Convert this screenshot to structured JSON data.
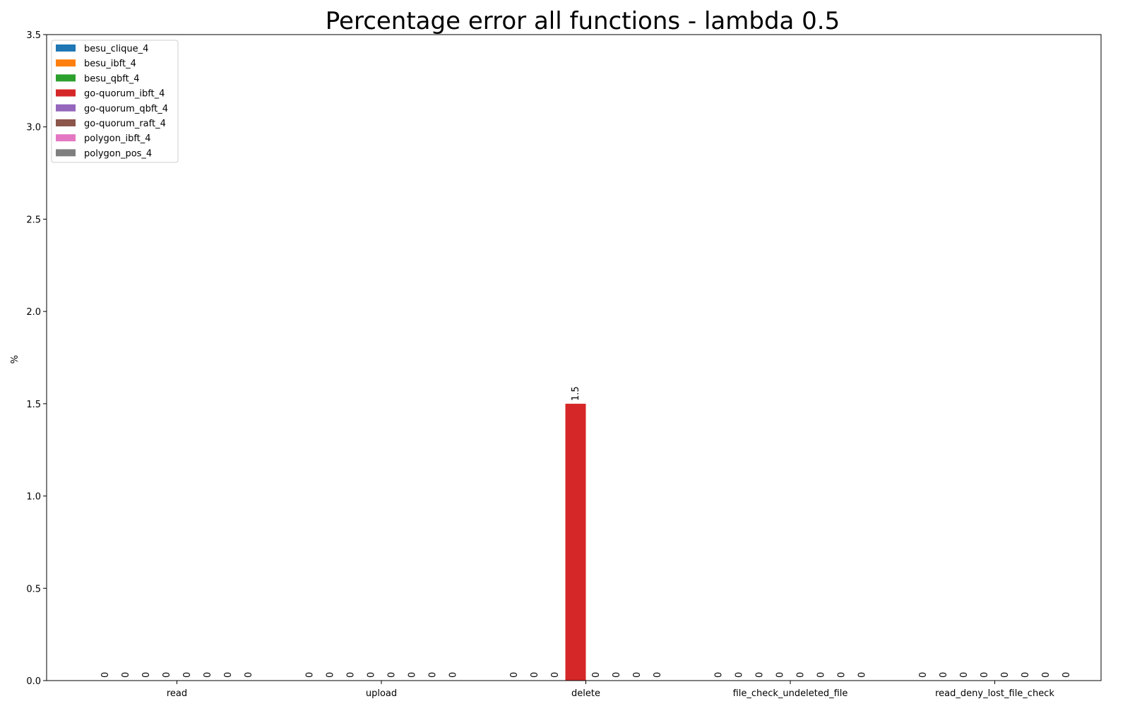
{
  "chart_data": {
    "type": "bar",
    "title": "Percentage error all functions - lambda 0.5",
    "xlabel": "",
    "ylabel": "%",
    "ylim": [
      0,
      3.5
    ],
    "yticks": [
      "0.0",
      "0.5",
      "1.0",
      "1.5",
      "2.0",
      "2.5",
      "3.0",
      "3.5"
    ],
    "categories": [
      "read",
      "upload",
      "delete",
      "file_check_undeleted_file",
      "read_deny_lost_file_check"
    ],
    "series": [
      {
        "name": "besu_clique_4",
        "color": "#1f77b4",
        "values": [
          0,
          0,
          0,
          0,
          0
        ],
        "labels": [
          "0",
          "0",
          "0",
          "0",
          "0"
        ]
      },
      {
        "name": "besu_ibft_4",
        "color": "#ff7f0e",
        "values": [
          0,
          0,
          0,
          0,
          0
        ],
        "labels": [
          "0",
          "0",
          "0",
          "0",
          "0"
        ]
      },
      {
        "name": "besu_qbft_4",
        "color": "#2ca02c",
        "values": [
          0,
          0,
          0,
          0,
          0
        ],
        "labels": [
          "0",
          "0",
          "0",
          "0",
          "0"
        ]
      },
      {
        "name": "go-quorum_ibft_4",
        "color": "#d62728",
        "values": [
          0,
          0,
          1.5,
          0,
          0
        ],
        "labels": [
          "0",
          "0",
          "1.5",
          "0",
          "0"
        ]
      },
      {
        "name": "go-quorum_qbft_4",
        "color": "#9467bd",
        "values": [
          0,
          0,
          0,
          0,
          0
        ],
        "labels": [
          "0",
          "0",
          "0",
          "0",
          "0"
        ]
      },
      {
        "name": "go-quorum_raft_4",
        "color": "#8c564b",
        "values": [
          0,
          0,
          0,
          0,
          0
        ],
        "labels": [
          "0",
          "0",
          "0",
          "0",
          "0"
        ]
      },
      {
        "name": "polygon_ibft_4",
        "color": "#e377c2",
        "values": [
          0,
          0,
          0,
          0,
          0
        ],
        "labels": [
          "0",
          "0",
          "0",
          "0",
          "0"
        ]
      },
      {
        "name": "polygon_pos_4",
        "color": "#7f7f7f",
        "values": [
          0,
          0,
          0,
          0,
          0
        ],
        "labels": [
          "0",
          "0",
          "0",
          "0",
          "0"
        ]
      }
    ],
    "legend_position": "top-left",
    "grid": false
  }
}
